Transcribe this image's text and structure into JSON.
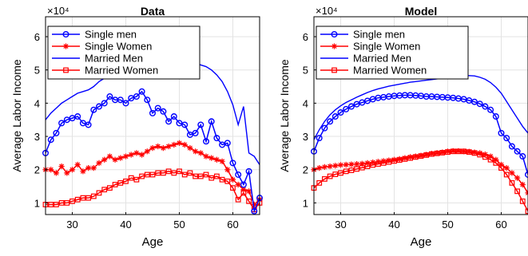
{
  "colors": {
    "blue": "#0000ff",
    "red": "#ff0000",
    "axis": "#000000",
    "grid": "#e3e3e3"
  },
  "chart_data": [
    {
      "type": "line",
      "title": "Data",
      "xlabel": "Age",
      "ylabel": "Average Labor Income",
      "y_exponent_label": "×10⁴",
      "xlim": [
        25,
        65
      ],
      "ylim": [
        0.65,
        6.6
      ],
      "xticks": [
        30,
        40,
        50,
        60
      ],
      "yticks": [
        1,
        2,
        3,
        4,
        5,
        6
      ],
      "grid": true,
      "legend_position": "top-left",
      "series": [
        {
          "name": "Single men",
          "color": "#0000ff",
          "marker": "circle",
          "x": [
            25,
            26,
            27,
            28,
            29,
            30,
            31,
            32,
            33,
            34,
            35,
            36,
            37,
            38,
            39,
            40,
            41,
            42,
            43,
            44,
            45,
            46,
            47,
            48,
            49,
            50,
            51,
            52,
            53,
            54,
            55,
            56,
            57,
            58,
            59,
            60,
            61,
            62,
            63,
            64,
            65
          ],
          "y": [
            2.5,
            2.9,
            3.1,
            3.4,
            3.5,
            3.55,
            3.6,
            3.4,
            3.35,
            3.8,
            3.9,
            4.0,
            4.2,
            4.1,
            4.1,
            4.0,
            4.15,
            4.2,
            4.35,
            4.1,
            3.7,
            3.85,
            3.75,
            3.45,
            3.6,
            3.4,
            3.35,
            3.05,
            3.1,
            3.35,
            2.85,
            3.45,
            2.95,
            2.75,
            2.8,
            2.2,
            1.85,
            1.55,
            1.95,
            0.75,
            1.15
          ]
        },
        {
          "name": "Single Women",
          "color": "#ff0000",
          "marker": "asterisk",
          "x": [
            25,
            26,
            27,
            28,
            29,
            30,
            31,
            32,
            33,
            34,
            35,
            36,
            37,
            38,
            39,
            40,
            41,
            42,
            43,
            44,
            45,
            46,
            47,
            48,
            49,
            50,
            51,
            52,
            53,
            54,
            55,
            56,
            57,
            58,
            59,
            60,
            61,
            62,
            63,
            64,
            65
          ],
          "y": [
            2.0,
            2.0,
            1.9,
            2.1,
            1.9,
            2.0,
            2.15,
            1.95,
            2.05,
            2.05,
            2.2,
            2.3,
            2.4,
            2.3,
            2.35,
            2.4,
            2.45,
            2.5,
            2.45,
            2.55,
            2.65,
            2.7,
            2.65,
            2.7,
            2.75,
            2.8,
            2.75,
            2.65,
            2.55,
            2.5,
            2.4,
            2.35,
            2.3,
            2.25,
            2.0,
            1.7,
            1.55,
            1.4,
            1.35,
            0.95,
            1.1
          ]
        },
        {
          "name": "Married Men",
          "color": "#0000ff",
          "marker": "point",
          "x": [
            25,
            26,
            27,
            28,
            29,
            30,
            31,
            32,
            33,
            34,
            35,
            36,
            37,
            38,
            39,
            40,
            41,
            42,
            43,
            44,
            45,
            46,
            47,
            48,
            49,
            50,
            51,
            52,
            53,
            54,
            55,
            56,
            57,
            58,
            59,
            60,
            61,
            62,
            63,
            64,
            65
          ],
          "y": [
            3.5,
            3.7,
            3.85,
            4.0,
            4.1,
            4.2,
            4.3,
            4.35,
            4.4,
            4.5,
            4.65,
            4.75,
            4.85,
            4.9,
            4.95,
            5.0,
            5.05,
            5.1,
            5.15,
            5.2,
            5.25,
            5.3,
            5.3,
            5.35,
            5.35,
            5.35,
            5.3,
            5.25,
            5.2,
            5.15,
            5.1,
            5.0,
            4.85,
            4.65,
            4.35,
            3.95,
            3.35,
            3.9,
            2.5,
            2.4,
            2.15
          ]
        },
        {
          "name": "Married Women",
          "color": "#ff0000",
          "marker": "square",
          "x": [
            25,
            26,
            27,
            28,
            29,
            30,
            31,
            32,
            33,
            34,
            35,
            36,
            37,
            38,
            39,
            40,
            41,
            42,
            43,
            44,
            45,
            46,
            47,
            48,
            49,
            50,
            51,
            52,
            53,
            54,
            55,
            56,
            57,
            58,
            59,
            60,
            61,
            62,
            63,
            64,
            65
          ],
          "y": [
            0.95,
            0.95,
            0.95,
            1.0,
            1.0,
            1.05,
            1.1,
            1.15,
            1.15,
            1.2,
            1.3,
            1.4,
            1.45,
            1.55,
            1.6,
            1.65,
            1.75,
            1.7,
            1.8,
            1.85,
            1.85,
            1.9,
            1.9,
            1.95,
            1.9,
            1.95,
            1.85,
            1.9,
            1.8,
            1.8,
            1.85,
            1.75,
            1.8,
            1.7,
            1.65,
            1.45,
            1.1,
            1.3,
            1.05,
            0.8,
            1.0
          ]
        }
      ]
    },
    {
      "type": "line",
      "title": "Model",
      "xlabel": "Age",
      "ylabel": "Average Labor Income",
      "y_exponent_label": "×10⁴",
      "xlim": [
        25,
        65
      ],
      "ylim": [
        0.65,
        6.6
      ],
      "xticks": [
        30,
        40,
        50,
        60
      ],
      "yticks": [
        1,
        2,
        3,
        4,
        5,
        6
      ],
      "grid": true,
      "legend_position": "top-left",
      "series": [
        {
          "name": "Single men",
          "color": "#0000ff",
          "marker": "circle",
          "x": [
            25,
            26,
            27,
            28,
            29,
            30,
            31,
            32,
            33,
            34,
            35,
            36,
            37,
            38,
            39,
            40,
            41,
            42,
            43,
            44,
            45,
            46,
            47,
            48,
            49,
            50,
            51,
            52,
            53,
            54,
            55,
            56,
            57,
            58,
            59,
            60,
            61,
            62,
            63,
            64,
            65
          ],
          "y": [
            2.55,
            2.95,
            3.25,
            3.45,
            3.6,
            3.72,
            3.82,
            3.9,
            3.97,
            4.02,
            4.07,
            4.12,
            4.16,
            4.18,
            4.2,
            4.22,
            4.23,
            4.24,
            4.24,
            4.23,
            4.22,
            4.2,
            4.2,
            4.19,
            4.18,
            4.17,
            4.16,
            4.14,
            4.12,
            4.08,
            4.04,
            3.98,
            3.9,
            3.8,
            3.6,
            3.1,
            2.95,
            2.7,
            2.55,
            2.4,
            1.85
          ]
        },
        {
          "name": "Single Women",
          "color": "#ff0000",
          "marker": "asterisk",
          "x": [
            25,
            26,
            27,
            28,
            29,
            30,
            31,
            32,
            33,
            34,
            35,
            36,
            37,
            38,
            39,
            40,
            41,
            42,
            43,
            44,
            45,
            46,
            47,
            48,
            49,
            50,
            51,
            52,
            53,
            54,
            55,
            56,
            57,
            58,
            59,
            60,
            61,
            62,
            63,
            64,
            65
          ],
          "y": [
            2.0,
            2.05,
            2.08,
            2.1,
            2.12,
            2.14,
            2.15,
            2.16,
            2.17,
            2.18,
            2.2,
            2.22,
            2.24,
            2.26,
            2.28,
            2.3,
            2.32,
            2.35,
            2.38,
            2.4,
            2.42,
            2.45,
            2.48,
            2.5,
            2.52,
            2.55,
            2.56,
            2.56,
            2.55,
            2.54,
            2.52,
            2.5,
            2.46,
            2.4,
            2.3,
            2.15,
            2.05,
            1.9,
            1.75,
            1.55,
            1.3
          ]
        },
        {
          "name": "Married Men",
          "color": "#0000ff",
          "marker": "point",
          "x": [
            25,
            26,
            27,
            28,
            29,
            30,
            31,
            32,
            33,
            34,
            35,
            36,
            37,
            38,
            39,
            40,
            41,
            42,
            43,
            44,
            45,
            46,
            47,
            48,
            49,
            50,
            51,
            52,
            53,
            54,
            55,
            56,
            57,
            58,
            59,
            60,
            61,
            62,
            63,
            64,
            65
          ],
          "y": [
            2.9,
            3.2,
            3.45,
            3.65,
            3.8,
            3.92,
            4.02,
            4.1,
            4.18,
            4.25,
            4.32,
            4.38,
            4.43,
            4.47,
            4.51,
            4.54,
            4.57,
            4.6,
            4.63,
            4.65,
            4.67,
            4.69,
            4.71,
            4.73,
            4.75,
            4.77,
            4.79,
            4.81,
            4.83,
            4.83,
            4.82,
            4.78,
            4.72,
            4.62,
            4.48,
            4.3,
            4.05,
            3.8,
            3.55,
            3.3,
            3.1
          ]
        },
        {
          "name": "Married Women",
          "color": "#ff0000",
          "marker": "square",
          "x": [
            25,
            26,
            27,
            28,
            29,
            30,
            31,
            32,
            33,
            34,
            35,
            36,
            37,
            38,
            39,
            40,
            41,
            42,
            43,
            44,
            45,
            46,
            47,
            48,
            49,
            50,
            51,
            52,
            53,
            54,
            55,
            56,
            57,
            58,
            59,
            60,
            61,
            62,
            63,
            64,
            65
          ],
          "y": [
            1.45,
            1.6,
            1.72,
            1.8,
            1.86,
            1.9,
            1.95,
            1.98,
            2.02,
            2.06,
            2.1,
            2.14,
            2.17,
            2.2,
            2.23,
            2.26,
            2.29,
            2.32,
            2.35,
            2.38,
            2.41,
            2.44,
            2.47,
            2.49,
            2.51,
            2.53,
            2.55,
            2.55,
            2.55,
            2.53,
            2.5,
            2.45,
            2.38,
            2.3,
            2.2,
            2.05,
            1.85,
            1.6,
            1.35,
            1.05,
            0.75
          ]
        }
      ]
    }
  ]
}
